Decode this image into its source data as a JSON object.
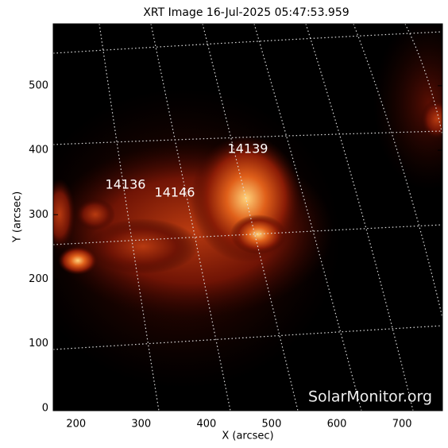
{
  "chart_data": {
    "type": "image",
    "title": "XRT Image 16-Jul-2025 05:47:53.959",
    "x_label": "X (arcsec)",
    "y_label": "Y (arcsec)",
    "xlim": [
      165,
      762
    ],
    "ylim": [
      -4,
      596
    ],
    "xticks": [
      200,
      300,
      400,
      500,
      600,
      700
    ],
    "yticks": [
      0,
      100,
      200,
      300,
      400,
      500
    ],
    "annotations": [
      "14139",
      "14136",
      "14146"
    ],
    "watermark": "SolarMonitor.org"
  }
}
